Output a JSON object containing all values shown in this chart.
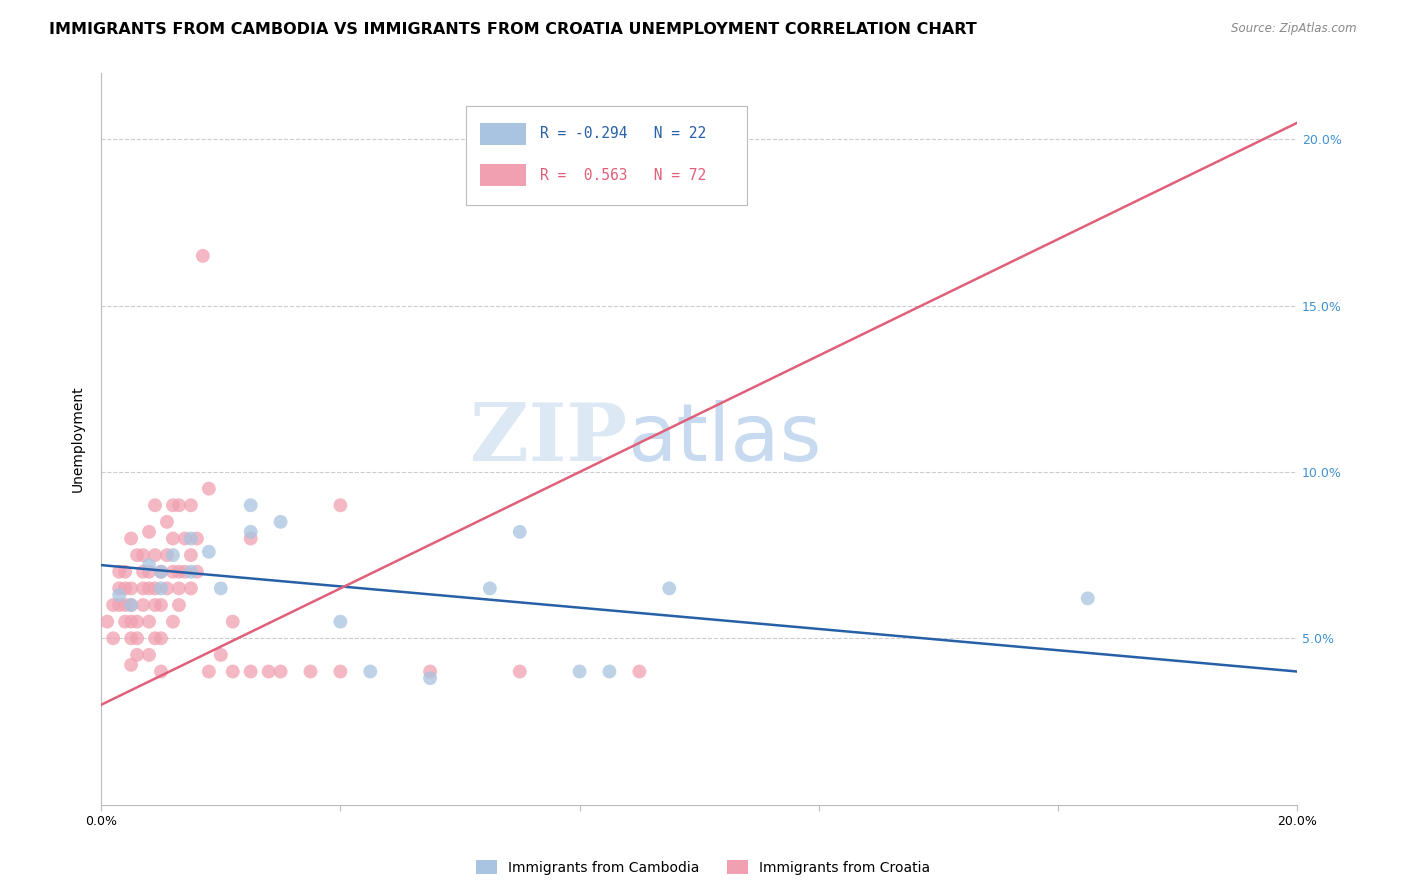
{
  "title": "IMMIGRANTS FROM CAMBODIA VS IMMIGRANTS FROM CROATIA UNEMPLOYMENT CORRELATION CHART",
  "source": "Source: ZipAtlas.com",
  "ylabel": "Unemployment",
  "xlim": [
    0.0,
    0.2
  ],
  "ylim": [
    0.0,
    0.22
  ],
  "yticks": [
    0.05,
    0.1,
    0.15,
    0.2
  ],
  "ytick_labels": [
    "5.0%",
    "10.0%",
    "15.0%",
    "20.0%"
  ],
  "xticks": [
    0.0,
    0.04,
    0.08,
    0.12,
    0.16,
    0.2
  ],
  "xtick_labels": [
    "0.0%",
    "",
    "",
    "",
    "",
    "20.0%"
  ],
  "grid_color": "#cccccc",
  "background_color": "#ffffff",
  "cambodia_color": "#a8c4e0",
  "croatia_color": "#f0a0b0",
  "cambodia_line_color": "#2860a8",
  "croatia_line_color": "#e0607a",
  "cambodia_R": -0.294,
  "cambodia_N": 22,
  "croatia_R": 0.563,
  "croatia_N": 72,
  "cambodia_line_x0": 0.0,
  "cambodia_line_y0": 0.072,
  "cambodia_line_x1": 0.2,
  "cambodia_line_y1": 0.04,
  "croatia_line_x0": 0.0,
  "croatia_line_y0": 0.03,
  "croatia_line_x1": 0.2,
  "croatia_line_y1": 0.205,
  "cambodia_x": [
    0.003,
    0.005,
    0.008,
    0.01,
    0.01,
    0.012,
    0.015,
    0.015,
    0.018,
    0.02,
    0.025,
    0.025,
    0.03,
    0.04,
    0.045,
    0.055,
    0.065,
    0.07,
    0.08,
    0.085,
    0.095,
    0.165
  ],
  "cambodia_y": [
    0.063,
    0.06,
    0.072,
    0.07,
    0.065,
    0.075,
    0.08,
    0.07,
    0.076,
    0.065,
    0.09,
    0.082,
    0.085,
    0.055,
    0.04,
    0.038,
    0.065,
    0.082,
    0.04,
    0.04,
    0.065,
    0.062
  ],
  "croatia_x": [
    0.001,
    0.002,
    0.002,
    0.003,
    0.003,
    0.003,
    0.004,
    0.004,
    0.004,
    0.004,
    0.005,
    0.005,
    0.005,
    0.005,
    0.005,
    0.005,
    0.006,
    0.006,
    0.006,
    0.006,
    0.007,
    0.007,
    0.007,
    0.007,
    0.008,
    0.008,
    0.008,
    0.008,
    0.008,
    0.009,
    0.009,
    0.009,
    0.009,
    0.009,
    0.01,
    0.01,
    0.01,
    0.01,
    0.011,
    0.011,
    0.011,
    0.012,
    0.012,
    0.012,
    0.012,
    0.013,
    0.013,
    0.013,
    0.013,
    0.014,
    0.014,
    0.015,
    0.015,
    0.015,
    0.016,
    0.016,
    0.017,
    0.018,
    0.018,
    0.02,
    0.022,
    0.022,
    0.025,
    0.025,
    0.028,
    0.03,
    0.035,
    0.04,
    0.04,
    0.055,
    0.07,
    0.09
  ],
  "croatia_y": [
    0.055,
    0.05,
    0.06,
    0.06,
    0.065,
    0.07,
    0.055,
    0.06,
    0.065,
    0.07,
    0.042,
    0.05,
    0.055,
    0.06,
    0.065,
    0.08,
    0.045,
    0.05,
    0.055,
    0.075,
    0.06,
    0.065,
    0.07,
    0.075,
    0.045,
    0.055,
    0.065,
    0.07,
    0.082,
    0.05,
    0.06,
    0.065,
    0.075,
    0.09,
    0.04,
    0.05,
    0.06,
    0.07,
    0.065,
    0.075,
    0.085,
    0.07,
    0.08,
    0.09,
    0.055,
    0.06,
    0.065,
    0.07,
    0.09,
    0.07,
    0.08,
    0.065,
    0.075,
    0.09,
    0.07,
    0.08,
    0.165,
    0.095,
    0.04,
    0.045,
    0.04,
    0.055,
    0.08,
    0.04,
    0.04,
    0.04,
    0.04,
    0.09,
    0.04,
    0.04,
    0.04,
    0.04
  ],
  "title_fontsize": 11.5,
  "axis_label_fontsize": 10,
  "tick_fontsize": 9,
  "right_tick_color": "#4090d0",
  "marker_size": 100,
  "marker_alpha": 0.75
}
